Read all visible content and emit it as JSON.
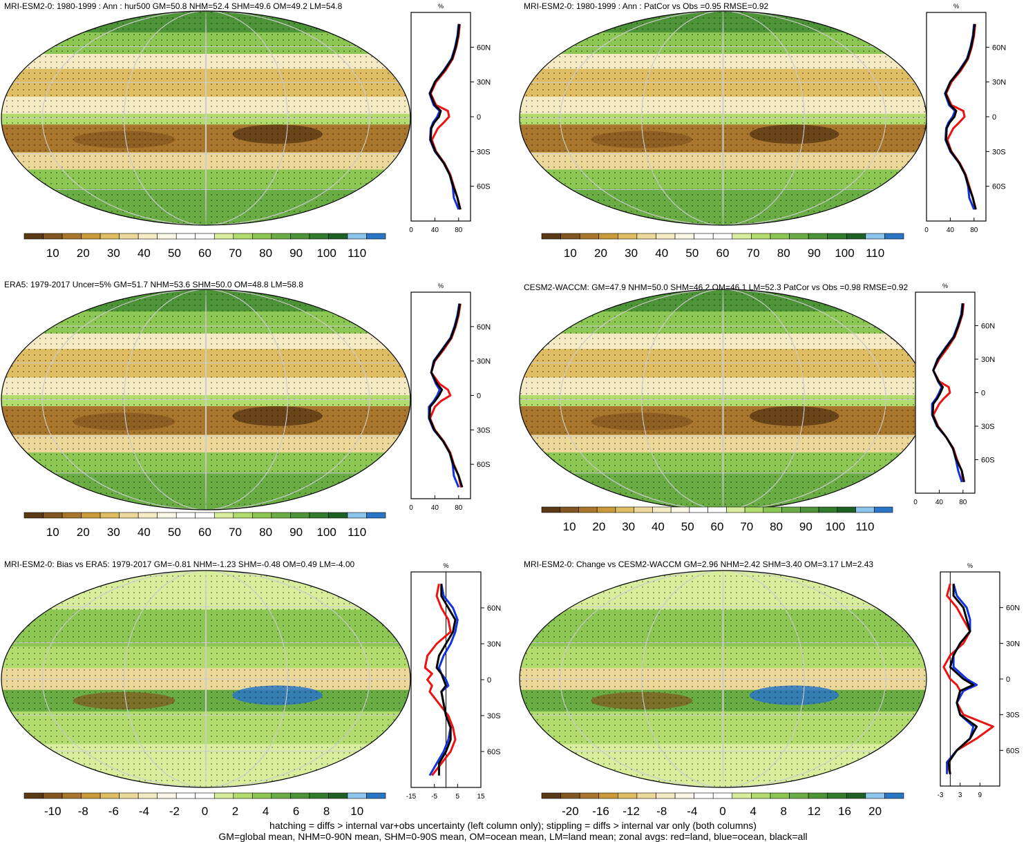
{
  "footer": {
    "line1": "hatching = diffs > internal var+obs uncertainty (left column only); stippling = diffs > internal var only (both columns)",
    "line2": "GM=global mean, NHM=0-90N mean, SHM=0-90S mean, OM=ocean mean, LM=land mean; zonal avgs: red=land, blue=ocean, black=all"
  },
  "colors": {
    "land_line": "#ee1111",
    "ocean_line": "#1133dd",
    "all_line": "#000000",
    "abs_palette": [
      "#5a3a14",
      "#82561f",
      "#a8762d",
      "#c99a3a",
      "#dfbe63",
      "#ecd99a",
      "#f4ebc4",
      "#fbf7e6",
      "#ffffff",
      "#ffffff",
      "#d8ee9c",
      "#b2dc6d",
      "#8cc653",
      "#6aad45",
      "#4d9338",
      "#327a2c",
      "#1f6124",
      "#8cc4ec",
      "#2a76c6"
    ],
    "diff_palette": [
      "#5a3a14",
      "#82561f",
      "#a8762d",
      "#c99a3a",
      "#dfbe63",
      "#ecd99a",
      "#f4ebc4",
      "#fbf7e6",
      "#ffffff",
      "#ffffff",
      "#d8ee9c",
      "#b2dc6d",
      "#8cc653",
      "#6aad45",
      "#4d9338",
      "#327a2c",
      "#1f6124",
      "#8cc4ec",
      "#2a76c6"
    ]
  },
  "panels": [
    {
      "title": "MRI-ESM2-0: 1980-1999 : Ann : hur500 GM=50.8 NHM=52.4 SHM=49.6 OM=49.2 LM=54.8",
      "cbar_labels": [
        "10",
        "20",
        "30",
        "40",
        "50",
        "60",
        "70",
        "80",
        "90",
        "100",
        "110"
      ],
      "zon_xticks": [
        "0",
        "40",
        "80"
      ],
      "zon_yticks": [
        "60N",
        "30N",
        "0",
        "30S",
        "60S"
      ],
      "zon_unit": "%"
    },
    {
      "title": "MRI-ESM2-0: 1980-1999 : Ann : PatCor vs Obs =0.95 RMSE=0.92",
      "cbar_labels": [
        "10",
        "20",
        "30",
        "40",
        "50",
        "60",
        "70",
        "80",
        "90",
        "100",
        "110"
      ],
      "zon_xticks": [
        "0",
        "40",
        "80"
      ],
      "zon_yticks": [
        "60N",
        "30N",
        "0",
        "30S",
        "60S"
      ],
      "zon_unit": "%"
    },
    {
      "title": "ERA5: 1979-2017 Uncer=5% GM=51.7 NHM=53.6 SHM=50.0 OM=48.8 LM=58.8",
      "cbar_labels": [
        "10",
        "20",
        "30",
        "40",
        "50",
        "60",
        "70",
        "80",
        "90",
        "100",
        "110"
      ],
      "zon_xticks": [
        "0",
        "40",
        "80"
      ],
      "zon_yticks": [
        "60N",
        "30N",
        "0",
        "30S",
        "60S"
      ],
      "zon_unit": "%"
    },
    {
      "title": "CESM2-WACCM: GM=47.9 NHM=50.0 SHM=46.2 OM=46.1 LM=52.3 PatCor vs Obs =0.98 RMSE=0.92",
      "cbar_labels": [
        "10",
        "20",
        "30",
        "40",
        "50",
        "60",
        "70",
        "80",
        "90",
        "100",
        "110"
      ],
      "zon_xticks": [
        "0",
        "40",
        "80"
      ],
      "zon_yticks": [
        "60N",
        "30N",
        "0",
        "30S",
        "60S"
      ],
      "zon_unit": "%"
    },
    {
      "title": "MRI-ESM2-0: Bias vs ERA5: 1979-2017 GM=-0.81 NHM=-1.23 SHM=-0.48 OM=0.49 LM=-4.00",
      "cbar_labels": [
        "-10",
        "-8",
        "-6",
        "-4",
        "-2",
        "0",
        "2",
        "4",
        "6",
        "8",
        "10"
      ],
      "zon_xticks": [
        "-15",
        "-5",
        "5",
        "15"
      ],
      "zon_yticks": [
        "60N",
        "30N",
        "0",
        "30S",
        "60S"
      ],
      "zon_unit": "%"
    },
    {
      "title": "MRI-ESM2-0: Change vs CESM2-WACCM GM=2.96 NHM=2.42 SHM=3.40 OM=3.17 LM=2.43",
      "cbar_labels": [
        "-20",
        "-16",
        "-12",
        "-8",
        "-4",
        "0",
        "4",
        "8",
        "12",
        "16",
        "20"
      ],
      "zon_xticks": [
        "-3",
        "3",
        "9"
      ],
      "zon_yticks": [
        "60N",
        "30N",
        "0",
        "30S",
        "60S"
      ],
      "zon_unit": "%"
    }
  ],
  "chart_data": [
    {
      "type": "line",
      "title": "MRI-ESM2-0: 1980-1999 : Ann : hur500 GM=50.8 NHM=52.4 SHM=49.6 OM=49.2 LM=54.8",
      "xlim": [
        0,
        100
      ],
      "ylim": [
        -90,
        90
      ],
      "series": [
        {
          "name": "land",
          "lat": [
            80,
            70,
            60,
            50,
            40,
            30,
            20,
            10,
            5,
            0,
            -5,
            -10,
            -20,
            -30,
            -40,
            -50,
            -60,
            -70,
            -80
          ],
          "values": [
            82,
            80,
            76,
            70,
            58,
            42,
            33,
            42,
            62,
            64,
            55,
            45,
            35,
            42,
            56,
            66,
            72,
            78,
            82
          ]
        },
        {
          "name": "ocean",
          "lat": [
            80,
            70,
            60,
            50,
            40,
            30,
            20,
            10,
            5,
            0,
            -5,
            -10,
            -20,
            -30,
            -40,
            -50,
            -60,
            -70,
            -80
          ],
          "values": [
            80,
            78,
            74,
            68,
            55,
            40,
            31,
            38,
            48,
            44,
            37,
            33,
            32,
            40,
            55,
            65,
            70,
            72,
            80
          ]
        },
        {
          "name": "all",
          "lat": [
            80,
            70,
            60,
            50,
            40,
            30,
            20,
            10,
            5,
            0,
            -5,
            -10,
            -20,
            -30,
            -40,
            -50,
            -60,
            -70,
            -80
          ],
          "values": [
            81,
            79,
            75,
            69,
            56,
            40,
            32,
            40,
            50,
            47,
            39,
            34,
            33,
            41,
            55,
            65,
            71,
            78,
            83
          ]
        }
      ]
    },
    {
      "type": "line",
      "title": "MRI-ESM2-0: 1980-1999 : Ann : PatCor vs Obs =0.95 RMSE=0.92",
      "xlim": [
        0,
        100
      ],
      "ylim": [
        -90,
        90
      ],
      "series": [
        {
          "name": "land",
          "lat": [
            80,
            70,
            60,
            50,
            40,
            30,
            20,
            10,
            5,
            0,
            -5,
            -10,
            -20,
            -30,
            -40,
            -50,
            -60,
            -70,
            -80
          ],
          "values": [
            82,
            80,
            76,
            70,
            58,
            42,
            33,
            42,
            62,
            64,
            55,
            45,
            35,
            42,
            56,
            66,
            72,
            78,
            82
          ]
        },
        {
          "name": "ocean",
          "lat": [
            80,
            70,
            60,
            50,
            40,
            30,
            20,
            10,
            5,
            0,
            -5,
            -10,
            -20,
            -30,
            -40,
            -50,
            -60,
            -70,
            -80
          ],
          "values": [
            80,
            78,
            74,
            68,
            55,
            40,
            31,
            38,
            48,
            44,
            37,
            33,
            32,
            40,
            55,
            65,
            70,
            72,
            80
          ]
        },
        {
          "name": "all",
          "lat": [
            80,
            70,
            60,
            50,
            40,
            30,
            20,
            10,
            5,
            0,
            -5,
            -10,
            -20,
            -30,
            -40,
            -50,
            -60,
            -70,
            -80
          ],
          "values": [
            81,
            79,
            75,
            69,
            56,
            40,
            32,
            40,
            50,
            47,
            39,
            34,
            33,
            41,
            55,
            65,
            71,
            78,
            83
          ]
        }
      ]
    },
    {
      "type": "line",
      "title": "ERA5: 1979-2017 Uncer=5% GM=51.7 NHM=53.6 SHM=50.0 OM=48.8 LM=58.8",
      "xlim": [
        0,
        100
      ],
      "ylim": [
        -90,
        90
      ],
      "series": [
        {
          "name": "land",
          "lat": [
            80,
            70,
            60,
            50,
            40,
            30,
            20,
            10,
            5,
            0,
            -5,
            -10,
            -20,
            -30,
            -40,
            -50,
            -60,
            -70,
            -80
          ],
          "values": [
            83,
            80,
            75,
            68,
            55,
            40,
            34,
            48,
            62,
            66,
            50,
            40,
            32,
            40,
            55,
            66,
            72,
            80,
            84
          ]
        },
        {
          "name": "ocean",
          "lat": [
            80,
            70,
            60,
            50,
            40,
            30,
            20,
            10,
            5,
            0,
            -5,
            -10,
            -20,
            -30,
            -40,
            -50,
            -60,
            -70,
            -80
          ],
          "values": [
            81,
            78,
            73,
            66,
            52,
            38,
            34,
            42,
            48,
            44,
            38,
            30,
            30,
            38,
            54,
            65,
            70,
            72,
            80
          ]
        },
        {
          "name": "all",
          "lat": [
            80,
            70,
            60,
            50,
            40,
            30,
            20,
            10,
            5,
            0,
            -5,
            -10,
            -20,
            -30,
            -40,
            -50,
            -60,
            -70,
            -80
          ],
          "values": [
            82,
            79,
            74,
            67,
            53,
            39,
            34,
            44,
            52,
            47,
            40,
            32,
            31,
            39,
            54,
            65,
            71,
            80,
            86
          ]
        }
      ]
    },
    {
      "type": "line",
      "title": "CESM2-WACCM: GM=47.9 NHM=50.0 SHM=46.2 OM=46.1 LM=52.3 PatCor vs Obs =0.98 RMSE=0.92",
      "xlim": [
        0,
        100
      ],
      "ylim": [
        -90,
        90
      ],
      "series": [
        {
          "name": "land",
          "lat": [
            80,
            70,
            60,
            50,
            40,
            30,
            20,
            10,
            5,
            0,
            -5,
            -10,
            -20,
            -30,
            -40,
            -50,
            -60,
            -70,
            -80
          ],
          "values": [
            81,
            79,
            73,
            66,
            54,
            40,
            30,
            40,
            56,
            58,
            48,
            40,
            30,
            38,
            52,
            64,
            70,
            78,
            80
          ]
        },
        {
          "name": "ocean",
          "lat": [
            80,
            70,
            60,
            50,
            40,
            30,
            20,
            10,
            5,
            0,
            -5,
            -10,
            -20,
            -30,
            -40,
            -50,
            -60,
            -70,
            -80
          ],
          "values": [
            79,
            77,
            71,
            64,
            50,
            37,
            30,
            38,
            44,
            40,
            35,
            28,
            28,
            36,
            52,
            63,
            68,
            72,
            78
          ]
        },
        {
          "name": "all",
          "lat": [
            80,
            70,
            60,
            50,
            40,
            30,
            20,
            10,
            5,
            0,
            -5,
            -10,
            -20,
            -30,
            -40,
            -50,
            -60,
            -70,
            -80
          ],
          "values": [
            80,
            78,
            72,
            65,
            51,
            38,
            30,
            39,
            46,
            42,
            37,
            30,
            29,
            37,
            52,
            63,
            69,
            78,
            82
          ]
        }
      ]
    },
    {
      "type": "line",
      "title": "MRI-ESM2-0: Bias vs ERA5: 1979-2017 GM=-0.81 NHM=-1.23 SHM=-0.48 OM=0.49 LM=-4.00",
      "xlim": [
        -15,
        15
      ],
      "ylim": [
        -90,
        90
      ],
      "series": [
        {
          "name": "land",
          "lat": [
            80,
            70,
            60,
            50,
            40,
            30,
            20,
            10,
            5,
            0,
            -5,
            -10,
            -20,
            -30,
            -40,
            -50,
            -60,
            -70,
            -80
          ],
          "values": [
            -3,
            -4,
            -2,
            1,
            2,
            -4,
            -8,
            -9,
            -6,
            -8,
            -6,
            -7,
            -3,
            1,
            3,
            4,
            2,
            -2,
            -6
          ]
        },
        {
          "name": "ocean",
          "lat": [
            80,
            70,
            60,
            50,
            40,
            30,
            20,
            10,
            5,
            0,
            -5,
            -10,
            -20,
            -30,
            -40,
            -50,
            -60,
            -70,
            -80
          ],
          "values": [
            -2,
            -1,
            3,
            5,
            4,
            2,
            -1,
            -3,
            -2,
            0,
            1,
            -2,
            -1,
            0,
            2,
            1,
            -1,
            -4,
            -7
          ]
        },
        {
          "name": "all",
          "lat": [
            80,
            70,
            60,
            50,
            40,
            30,
            20,
            10,
            5,
            0,
            -5,
            -10,
            -20,
            -30,
            -40,
            -50,
            -60,
            -70,
            -80
          ],
          "values": [
            -2,
            -2,
            1,
            4,
            3,
            0,
            -3,
            -4,
            -2,
            -1,
            0,
            -2,
            -1,
            0,
            2,
            2,
            0,
            -3,
            -3
          ]
        }
      ]
    },
    {
      "type": "line",
      "title": "MRI-ESM2-0: Change vs CESM2-WACCM GM=2.96 NHM=2.42 SHM=3.40 OM=3.17 LM=2.43",
      "xlim": [
        -3,
        15
      ],
      "ylim": [
        -90,
        90
      ],
      "series": [
        {
          "name": "land",
          "lat": [
            80,
            70,
            60,
            50,
            40,
            30,
            20,
            10,
            5,
            0,
            -5,
            -10,
            -20,
            -30,
            -40,
            -50,
            -60,
            -70,
            -80
          ],
          "values": [
            0,
            -1,
            2,
            4,
            6,
            4,
            0,
            -2,
            -1,
            0,
            2,
            3,
            2,
            4,
            13,
            8,
            2,
            -1,
            0
          ]
        },
        {
          "name": "ocean",
          "lat": [
            80,
            70,
            60,
            50,
            40,
            30,
            20,
            10,
            5,
            0,
            -5,
            -10,
            -20,
            -30,
            -40,
            -50,
            -60,
            -70,
            -80
          ],
          "values": [
            1,
            2,
            5,
            6,
            6,
            3,
            1,
            1,
            3,
            5,
            8,
            4,
            2,
            3,
            7,
            6,
            2,
            -1,
            -1
          ]
        },
        {
          "name": "all",
          "lat": [
            80,
            70,
            60,
            50,
            40,
            30,
            20,
            10,
            5,
            0,
            -5,
            -10,
            -20,
            -30,
            -40,
            -50,
            -60,
            -70,
            -80
          ],
          "values": [
            1,
            1,
            4,
            5,
            6,
            3,
            1,
            0,
            2,
            4,
            7,
            3,
            2,
            3,
            8,
            6,
            2,
            -0.5,
            0
          ]
        }
      ]
    }
  ]
}
